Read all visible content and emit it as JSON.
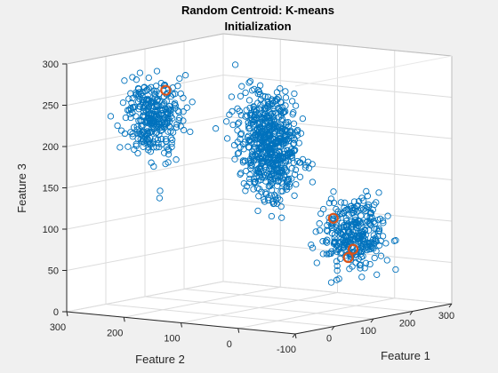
{
  "chart_data": {
    "type": "scatter",
    "title_lines": [
      "Random Centroid: K-means",
      "Initialization"
    ],
    "projection": "3d",
    "xlabel": "Feature 1",
    "ylabel": "Feature 2",
    "zlabel": "Feature 3",
    "xlim": [
      -100,
      300
    ],
    "ylim": [
      -100,
      300
    ],
    "zlim": [
      0,
      300
    ],
    "x_ticks": [
      -100,
      0,
      100,
      200,
      300
    ],
    "y_ticks": [
      -100,
      0,
      100,
      200,
      300
    ],
    "z_ticks": [
      0,
      50,
      100,
      150,
      200,
      250,
      300
    ],
    "x_tick_labels": [
      "",
      "0",
      "100",
      "200",
      "300"
    ],
    "y_tick_labels": [
      "-100",
      "0",
      "100",
      "200",
      "300"
    ],
    "z_tick_labels": [
      "0",
      "50",
      "100",
      "150",
      "200",
      "250",
      "300"
    ],
    "grid": true,
    "legend": "none",
    "clusters": [
      {
        "center": [
          50,
          250,
          225
        ],
        "spread": [
          22,
          22,
          22
        ],
        "count": 320
      },
      {
        "center": [
          60,
          60,
          225
        ],
        "spread": [
          22,
          22,
          22
        ],
        "count": 300
      },
      {
        "center": [
          250,
          180,
          160
        ],
        "spread": [
          22,
          22,
          22
        ],
        "count": 320
      },
      {
        "center": [
          250,
          40,
          80
        ],
        "spread": [
          22,
          22,
          22
        ],
        "count": 320
      }
    ],
    "centroids": [
      {
        "x": 80,
        "y": 250,
        "z": 255
      },
      {
        "x": 260,
        "y": 80,
        "z": 95
      },
      {
        "x": 150,
        "y": -30,
        "z": 75
      },
      {
        "x": 145,
        "y": -25,
        "z": 65
      }
    ],
    "colors": {
      "points": "#0072BD",
      "centroids": "#D95319",
      "grid": "#dcdcdc",
      "axes_bg": "#ffffff",
      "figure_bg": "#f0f0f0"
    }
  }
}
